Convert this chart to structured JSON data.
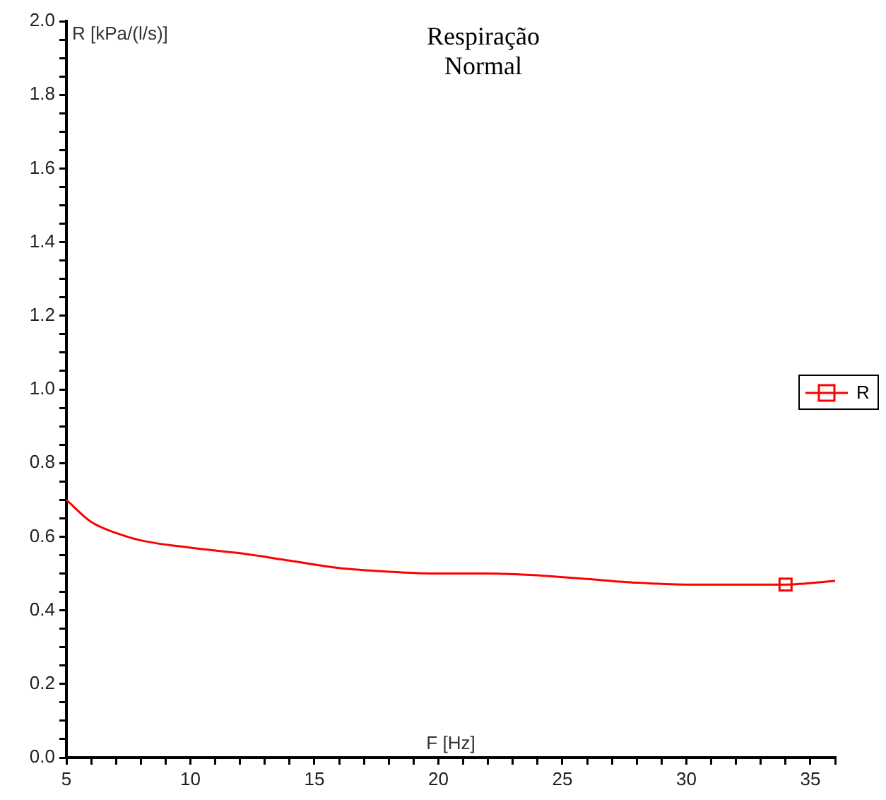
{
  "chart_data": {
    "type": "line",
    "title": "Respiração\nNormal",
    "xlabel": "F [Hz]",
    "ylabel": "R [kPa/(l/s)]",
    "xlim": [
      5,
      36
    ],
    "xticks": [
      5,
      {
        "value": 6,
        "label": null
      },
      {
        "value": 7,
        "label": null
      },
      {
        "value": 8,
        "label": null
      },
      {
        "value": 9,
        "label": null
      },
      10,
      {
        "value": 11,
        "label": null
      },
      {
        "value": 12,
        "label": null
      },
      {
        "value": 13,
        "label": null
      },
      {
        "value": 14,
        "label": null
      },
      15,
      {
        "value": 16,
        "label": null
      },
      {
        "value": 17,
        "label": null
      },
      {
        "value": 18,
        "label": null
      },
      {
        "value": 19,
        "label": null
      },
      20,
      {
        "value": 21,
        "label": null
      },
      {
        "value": 22,
        "label": null
      },
      {
        "value": 23,
        "label": null
      },
      {
        "value": 24,
        "label": null
      },
      25,
      {
        "value": 26,
        "label": null
      },
      {
        "value": 27,
        "label": null
      },
      {
        "value": 28,
        "label": null
      },
      {
        "value": 29,
        "label": null
      },
      30,
      {
        "value": 31,
        "label": null
      },
      {
        "value": 32,
        "label": null
      },
      {
        "value": 33,
        "label": null
      },
      {
        "value": 34,
        "label": null
      },
      35,
      {
        "value": 36,
        "label": null
      }
    ],
    "ylim": [
      0,
      2
    ],
    "yticks": [
      {
        "value": 0,
        "label": "0.0"
      },
      {
        "value": 0.05,
        "label": null
      },
      {
        "value": 0.1,
        "label": null
      },
      {
        "value": 0.15,
        "label": null
      },
      0.2,
      {
        "value": 0.25,
        "label": null
      },
      {
        "value": 0.3,
        "label": null
      },
      {
        "value": 0.35,
        "label": null
      },
      0.4,
      {
        "value": 0.45,
        "label": null
      },
      {
        "value": 0.5,
        "label": null
      },
      {
        "value": 0.55,
        "label": null
      },
      0.6,
      {
        "value": 0.65,
        "label": null
      },
      {
        "value": 0.7,
        "label": null
      },
      {
        "value": 0.75,
        "label": null
      },
      0.8,
      {
        "value": 0.85,
        "label": null
      },
      {
        "value": 0.9,
        "label": null
      },
      {
        "value": 0.95,
        "label": null
      },
      {
        "value": 1,
        "label": "1.0"
      },
      {
        "value": 1.05,
        "label": null
      },
      {
        "value": 1.1,
        "label": null
      },
      {
        "value": 1.15,
        "label": null
      },
      1.2,
      {
        "value": 1.25,
        "label": null
      },
      {
        "value": 1.3,
        "label": null
      },
      {
        "value": 1.35,
        "label": null
      },
      1.4,
      {
        "value": 1.45,
        "label": null
      },
      {
        "value": 1.5,
        "label": null
      },
      {
        "value": 1.55,
        "label": null
      },
      1.6,
      {
        "value": 1.65,
        "label": null
      },
      {
        "value": 1.7,
        "label": null
      },
      {
        "value": 1.75,
        "label": null
      },
      1.8,
      {
        "value": 1.85,
        "label": null
      },
      {
        "value": 1.9,
        "label": null
      },
      {
        "value": 1.95,
        "label": null
      },
      {
        "value": 2,
        "label": "2.0"
      }
    ],
    "grid": false,
    "legend": "right",
    "marker": "square",
    "series": [
      {
        "name": "R",
        "color": "#ff0000",
        "marker": "none",
        "x": [
          5,
          6,
          7,
          8,
          10,
          12,
          14,
          16,
          18,
          20,
          22,
          24,
          26,
          28,
          30,
          32,
          34,
          36
        ],
        "values": [
          0.7,
          0.64,
          0.61,
          0.59,
          0.57,
          0.555,
          0.535,
          0.515,
          0.505,
          0.5,
          0.5,
          0.495,
          0.485,
          0.475,
          0.47,
          0.47,
          0.47,
          0.48
        ]
      },
      {
        "color": "#ff0000",
        "type": "scatter",
        "x": [
          34
        ],
        "values": [
          0.47
        ]
      }
    ]
  }
}
